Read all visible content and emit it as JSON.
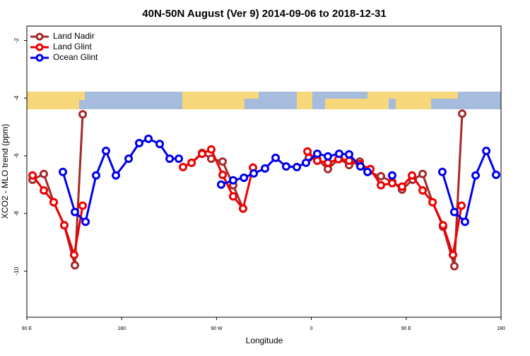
{
  "chart_data": {
    "type": "line",
    "title": "40N-50N August (Ver 9)   2014-09-06 to 2018-12-31",
    "x_label": "Longitude",
    "y_label": "XCO2 - MLO trend (ppm)",
    "xlim": [
      90,
      540
    ],
    "xticks": [
      {
        "value": 90,
        "label": "90 E"
      },
      180,
      {
        "value": 270,
        "label": "90 W"
      },
      {
        "value": 360,
        "label": "0"
      },
      {
        "value": 450,
        "label": "90 E"
      },
      {
        "value": 540,
        "label": "180"
      }
    ],
    "ylim": [
      -11.6,
      -1.5
    ],
    "yticks": [
      -2,
      -4,
      -6,
      -8,
      -10
    ],
    "grid": false,
    "legend": "top-left",
    "series": [
      {
        "name": "Land Nadir",
        "color": "#a52a2a",
        "x": [
          95.4,
          106.1,
          115.5,
          125.5,
          135.6,
          143.0,
          null,
          246.3,
          256.3,
          265.0,
          275.8,
          285.8,
          295.2,
          null,
          357.6,
          365.6,
          375.7,
          386.4,
          395.8,
          405.9,
          413.3,
          426.0,
          436.7,
          446.1,
          456.2,
          465.6,
          475.0,
          485.0,
          495.7,
          503.1
        ],
        "values": [
          -6.83,
          -6.63,
          -7.61,
          -8.41,
          -9.8,
          -4.56,
          null,
          -6.24,
          -5.9,
          -6.1,
          -6.2,
          -7.02,
          -7.83,
          null,
          -6.07,
          -6.12,
          -6.46,
          -6.1,
          -6.32,
          -6.2,
          -6.56,
          -6.71,
          -6.9,
          -7.17,
          -6.83,
          -6.63,
          -7.61,
          -8.46,
          -9.83,
          -4.54
        ]
      },
      {
        "name": "Land Glint",
        "color": "#ee0000",
        "x": [
          95.4,
          106.1,
          115.5,
          125.5,
          134.9,
          143.0,
          null,
          238.2,
          246.3,
          256.3,
          265.0,
          275.8,
          285.8,
          295.2,
          304.6,
          null,
          356.3,
          365.6,
          375.7,
          385.7,
          395.8,
          405.9,
          416.0,
          426.0,
          436.7,
          446.1,
          455.5,
          465.6,
          475.0,
          485.0,
          494.4,
          502.5
        ],
        "values": [
          -6.68,
          -7.2,
          -7.61,
          -8.41,
          -9.44,
          -7.73,
          null,
          -6.39,
          -6.24,
          -5.93,
          -5.78,
          -6.66,
          -7.41,
          -7.83,
          -6.41,
          null,
          -5.85,
          -6.17,
          -6.24,
          -6.12,
          -6.17,
          -6.29,
          -6.46,
          -7.02,
          -6.95,
          -7.07,
          -6.68,
          -7.2,
          -7.61,
          -8.41,
          -9.44,
          -7.73
        ]
      },
      {
        "name": "Ocean Glint",
        "color": "#0000ee",
        "x": [
          124.2,
          135.6,
          145.7,
          155.7,
          165.1,
          174.5,
          186.6,
          196.6,
          205.4,
          216.1,
          225.5,
          234.2,
          null,
          274.4,
          285.8,
          296.0,
          305.3,
          316.0,
          326.1,
          336.1,
          346.2,
          354.9,
          365.6,
          375.7,
          386.4,
          395.8,
          406.6,
          413.3,
          null,
          436.7,
          null,
          484.3,
          495.7,
          505.8,
          515.9,
          526.0,
          535.3
        ],
        "values": [
          -6.56,
          -7.95,
          -8.29,
          -6.68,
          -5.83,
          -6.68,
          -6.1,
          -5.56,
          -5.41,
          -5.59,
          -6.1,
          -6.1,
          null,
          -7.0,
          -6.85,
          -6.76,
          -6.61,
          -6.44,
          -6.07,
          -6.37,
          -6.39,
          -6.24,
          -5.93,
          -6.02,
          -5.93,
          -5.95,
          -6.37,
          -6.56,
          null,
          -6.68,
          null,
          -6.56,
          -7.95,
          -8.29,
          -6.68,
          -5.83,
          -6.66
        ]
      }
    ]
  }
}
